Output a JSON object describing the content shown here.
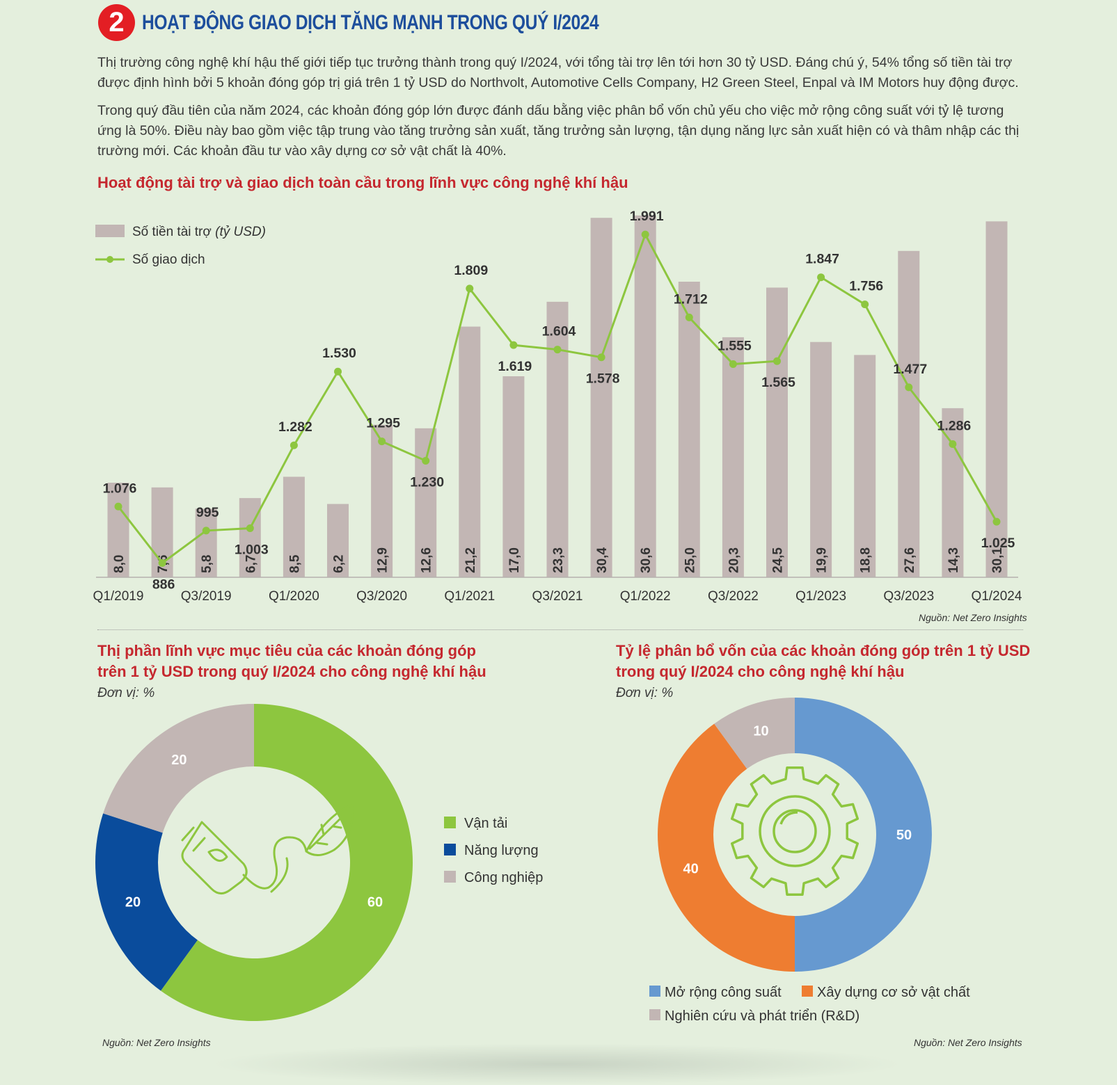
{
  "header": {
    "number": "2",
    "title": "HOẠT ĐỘNG GIAO DỊCH TĂNG MẠNH TRONG QUÝ I/2024"
  },
  "paragraphs": [
    "Thị trường công nghệ khí hậu thế giới tiếp tục trưởng thành trong quý I/2024, với tổng tài trợ lên tới hơn 30 tỷ USD. Đáng chú ý, 54% tổng số tiền tài trợ được định hình bởi 5 khoản đóng góp trị giá trên 1 tỷ USD do Northvolt, Automotive Cells Company, H2 Green Steel, Enpal và IM Motors huy động được.",
    "Trong quý đầu tiên của năm 2024, các khoản đóng góp lớn được đánh dấu bằng việc phân bổ vốn chủ yếu cho việc mở rộng công suất với tỷ lệ tương ứng là 50%. Điều này bao gồm việc tập trung vào tăng trưởng sản xuất, tăng trưởng sản lượng, tận dụng năng lực sản xuất hiện có và thâm nhập các thị trường mới. Các khoản đầu tư vào xây dựng cơ sở vật chất là 40%."
  ],
  "colors": {
    "bar": "#c2b6b4",
    "line": "#8dc63f",
    "green": "#8dc63f",
    "navy": "#0a4c9c",
    "gray": "#c2b6b4",
    "blue": "#6699d0",
    "orange": "#ee7d31",
    "title_red": "#c5282f",
    "header_blue": "#1d4e9c",
    "badge_red": "#e31e24"
  },
  "chart_data": [
    {
      "type": "bar+line",
      "title": "Hoạt động tài trợ và giao dịch toàn cầu trong lĩnh vực công nghệ khí hậu",
      "legend": [
        "Số tiền tài trợ (tỷ USD)",
        "Số giao dịch"
      ],
      "legend_placement": "top-left",
      "x_tick_labels": [
        "Q1/2019",
        "Q3/2019",
        "Q1/2020",
        "Q3/2020",
        "Q1/2021",
        "Q3/2021",
        "Q1/2022",
        "Q3/2022",
        "Q1/2023",
        "Q3/2023",
        "Q1/2024"
      ],
      "bar_values": [
        8.0,
        7.6,
        5.8,
        6.7,
        8.5,
        6.2,
        12.9,
        12.6,
        21.2,
        17.0,
        23.3,
        30.4,
        30.6,
        25.0,
        20.3,
        24.5,
        19.9,
        18.8,
        27.6,
        14.3,
        30.1
      ],
      "bar_labels": [
        "8,0",
        "7,6",
        "5,8",
        "6,7",
        "8,5",
        "6,2",
        "12,9",
        "12,6",
        "21,2",
        "17,0",
        "23,3",
        "30,4",
        "30,6",
        "25,0",
        "20,3",
        "24,5",
        "19,9",
        "18,8",
        "27,6",
        "14,3",
        "30,1"
      ],
      "line_values": [
        1076,
        886,
        995,
        1003,
        1282,
        1530,
        1295,
        1230,
        1809,
        1619,
        1604,
        1578,
        1991,
        1712,
        1555,
        1565,
        1847,
        1756,
        1477,
        1286,
        1025
      ],
      "line_labels": [
        "1.076",
        "886",
        "995",
        "1.003",
        "1.282",
        "1.530",
        "1.295",
        "1.230",
        "1.809",
        "1.619",
        "1.604",
        "1.578",
        "1.991",
        "1.712",
        "1.555",
        "1.565",
        "1.847",
        "1.756",
        "1.477",
        "1.286",
        "1.025"
      ],
      "line_label_side": [
        "above",
        "below",
        "above",
        "below",
        "above",
        "above",
        "above",
        "below",
        "above",
        "below",
        "above",
        "below",
        "above",
        "above",
        "above",
        "below",
        "above",
        "above",
        "above",
        "above",
        "below"
      ],
      "grid": false,
      "source": "Nguồn: Net Zero Insights"
    },
    {
      "type": "pie",
      "title_lines": [
        "Thị phần lĩnh vực mục tiêu của các khoản đóng góp",
        "trên 1 tỷ USD trong quý I/2024 cho công nghệ khí hậu"
      ],
      "unit": "Đơn vị: %",
      "slices": [
        {
          "label": "Vận tải",
          "value": 60,
          "value_label": "60",
          "color": "#8dc63f"
        },
        {
          "label": "Năng lượng",
          "value": 20,
          "value_label": "20",
          "color": "#0a4c9c"
        },
        {
          "label": "Công nghiệp",
          "value": 20,
          "value_label": "20",
          "color": "#c2b6b4"
        }
      ],
      "center_icon": "plug-leaf-icon",
      "legend_placement": "right",
      "source": "Nguồn: Net Zero Insights"
    },
    {
      "type": "pie",
      "title_lines": [
        "Tỷ lệ phân bổ vốn của các khoản đóng góp trên 1 tỷ USD",
        "trong quý I/2024 cho công nghệ khí hậu"
      ],
      "unit": "Đơn vị: %",
      "slices": [
        {
          "label": "Mở rộng công suất",
          "value": 50,
          "value_label": "50",
          "color": "#6699d0"
        },
        {
          "label": "Xây dựng cơ sở vật chất",
          "value": 40,
          "value_label": "40",
          "color": "#ee7d31"
        },
        {
          "label": "Nghiên cứu và phát triển (R&D)",
          "value": 10,
          "value_label": "10",
          "color": "#c2b6b4"
        }
      ],
      "center_icon": "gear-icon",
      "legend_placement": "bottom",
      "source": "Nguồn: Net Zero Insights"
    }
  ]
}
